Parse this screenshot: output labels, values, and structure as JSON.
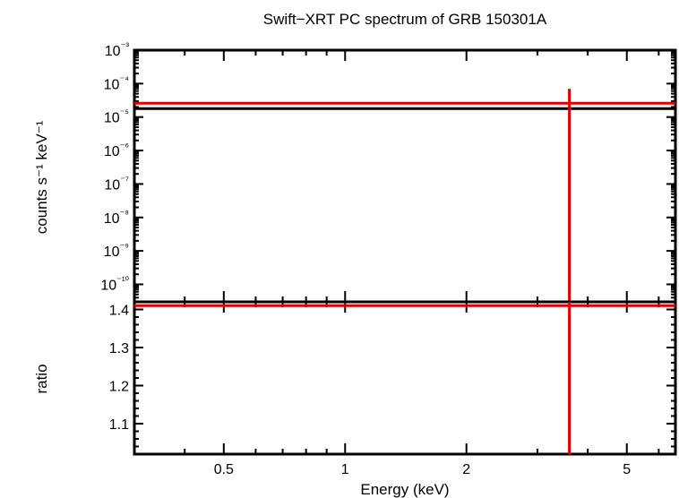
{
  "chart_data": {
    "type": "line",
    "title": "Swift−XRT PC spectrum of GRB 150301A",
    "xlabel": "Energy (keV)",
    "x_scale": "log",
    "xlim": [
      0.3,
      6.6
    ],
    "x_ticks": [
      {
        "value": 0.5,
        "label": "0.5"
      },
      {
        "value": 1,
        "label": "1"
      },
      {
        "value": 2,
        "label": "2"
      },
      {
        "value": 5,
        "label": "5"
      }
    ],
    "panels": [
      {
        "name": "spectrum",
        "ylabel": "counts s⁻¹ keV⁻¹",
        "y_scale": "log",
        "ylim": [
          3e-11,
          0.001
        ],
        "y_ticks": [
          {
            "value": 0.001,
            "label": "10⁻³"
          },
          {
            "value": 0.0001,
            "label": "10⁻⁴"
          },
          {
            "value": 1e-05,
            "label": "10⁻⁵"
          },
          {
            "value": 1e-06,
            "label": "10⁻⁶"
          },
          {
            "value": 1e-07,
            "label": "10⁻⁷"
          },
          {
            "value": 1e-08,
            "label": "10⁻⁸"
          },
          {
            "value": 1e-09,
            "label": "10⁻⁹"
          },
          {
            "value": 1e-10,
            "label": "10⁻¹⁰"
          }
        ],
        "series": [
          {
            "color": "#000000",
            "points": [
              [
                0.3,
                1.8e-05
              ],
              [
                6.6,
                1.8e-05
              ]
            ]
          },
          {
            "color": "#dd0000",
            "points": [
              [
                0.3,
                2.6e-05
              ],
              [
                6.6,
                2.6e-05
              ]
            ]
          },
          {
            "color": "#dd0000",
            "points": [
              [
                3.6,
                7e-05
              ],
              [
                3.6,
                3e-11
              ]
            ]
          }
        ]
      },
      {
        "name": "ratio",
        "ylabel": "ratio",
        "y_scale": "linear",
        "ylim": [
          1.02,
          1.42
        ],
        "y_ticks": [
          {
            "value": 1.1,
            "label": "1.1"
          },
          {
            "value": 1.2,
            "label": "1.2"
          },
          {
            "value": 1.3,
            "label": "1.3"
          },
          {
            "value": 1.4,
            "label": "1.4"
          }
        ],
        "series": [
          {
            "color": "#000000",
            "points": [
              [
                0.3,
                1.42
              ],
              [
                6.6,
                1.42
              ]
            ]
          },
          {
            "color": "#dd0000",
            "points": [
              [
                0.3,
                1.41
              ],
              [
                6.6,
                1.41
              ]
            ]
          },
          {
            "color": "#dd0000",
            "points": [
              [
                3.6,
                1.42
              ],
              [
                3.6,
                1.02
              ]
            ]
          }
        ]
      }
    ],
    "colors": {
      "data": "#000000",
      "model": "#dd0000"
    }
  }
}
